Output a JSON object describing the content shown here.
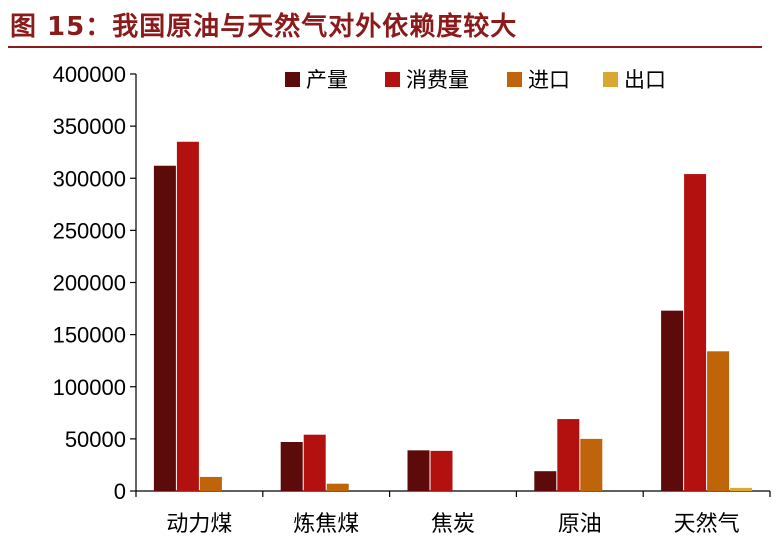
{
  "header": {
    "title": "图 15：我国原油与天然气对外依赖度较大"
  },
  "chart_data": {
    "type": "bar",
    "categories": [
      "动力煤",
      "炼焦煤",
      "焦炭",
      "原油",
      "天然气"
    ],
    "series": [
      {
        "name": "产量",
        "color": "#5C0A0A",
        "values": [
          312000,
          47000,
          39000,
          19000,
          173000
        ]
      },
      {
        "name": "消费量",
        "color": "#B31010",
        "values": [
          335000,
          54000,
          38500,
          69000,
          304000
        ]
      },
      {
        "name": "进口",
        "color": "#C0640A",
        "values": [
          13500,
          7000,
          0,
          50000,
          134000
        ]
      },
      {
        "name": "出口",
        "color": "#D9A830",
        "values": [
          0,
          0,
          0,
          0,
          3000
        ]
      }
    ],
    "ylim": [
      0,
      400000
    ],
    "yticks": [
      0,
      50000,
      100000,
      150000,
      200000,
      250000,
      300000,
      350000,
      400000
    ],
    "legend_position": "top",
    "grid": false
  }
}
